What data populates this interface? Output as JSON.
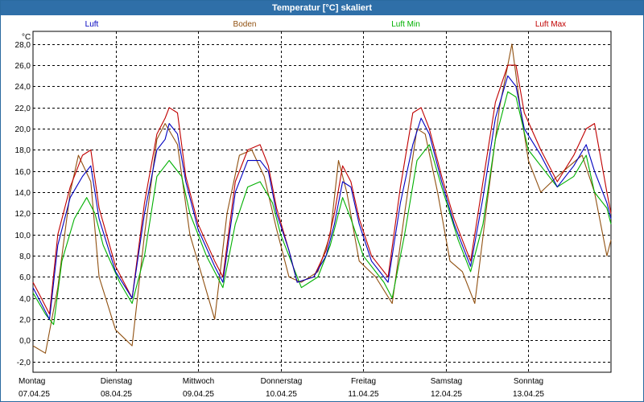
{
  "window": {
    "title": "Temperatur [°C] skaliert"
  },
  "chart_data": {
    "type": "line",
    "title": "Temperatur [°C] skaliert",
    "ylabel": "°C",
    "xlabel": "",
    "ylim": [
      -3.0,
      29.2
    ],
    "xlim": [
      0,
      7.0
    ],
    "grid": true,
    "legend_position": "top",
    "y_ticks": [
      "28,0",
      "26,0",
      "24,0",
      "22,0",
      "20,0",
      "18,0",
      "16,0",
      "14,0",
      "12,0",
      "10,0",
      "8,0",
      "6,0",
      "4,0",
      "2,0",
      "0,0",
      "-2,0"
    ],
    "y_tick_values": [
      28,
      26,
      24,
      22,
      20,
      18,
      16,
      14,
      12,
      10,
      8,
      6,
      4,
      2,
      0,
      -2
    ],
    "x_ticks": [
      {
        "x": 0,
        "day": "Montag",
        "date": "07.04.25"
      },
      {
        "x": 1,
        "day": "Dienstag",
        "date": "08.04.25"
      },
      {
        "x": 2,
        "day": "Mittwoch",
        "date": "09.04.25"
      },
      {
        "x": 3,
        "day": "Donnerstag",
        "date": "10.04.25"
      },
      {
        "x": 4,
        "day": "Freitag",
        "date": "11.04.25"
      },
      {
        "x": 5,
        "day": "Samstag",
        "date": "12.04.25"
      },
      {
        "x": 6,
        "day": "Sonntag",
        "date": "13.04.25"
      }
    ],
    "series": [
      {
        "name": "Luft",
        "color": "#0000c0",
        "points": [
          [
            0,
            5.0
          ],
          [
            0.1,
            3.5
          ],
          [
            0.2,
            2.0
          ],
          [
            0.3,
            9.0
          ],
          [
            0.45,
            13.5
          ],
          [
            0.6,
            15.5
          ],
          [
            0.7,
            16.5
          ],
          [
            0.8,
            11.5
          ],
          [
            1.0,
            6.5
          ],
          [
            1.2,
            4.0
          ],
          [
            1.35,
            12.0
          ],
          [
            1.5,
            18.0
          ],
          [
            1.6,
            19.0
          ],
          [
            1.65,
            20.5
          ],
          [
            1.75,
            19.5
          ],
          [
            1.85,
            15.0
          ],
          [
            2.0,
            10.5
          ],
          [
            2.2,
            7.0
          ],
          [
            2.3,
            5.5
          ],
          [
            2.45,
            14.0
          ],
          [
            2.6,
            17.0
          ],
          [
            2.75,
            17.0
          ],
          [
            2.85,
            16.0
          ],
          [
            2.95,
            12.0
          ],
          [
            3.1,
            8.5
          ],
          [
            3.2,
            5.5
          ],
          [
            3.4,
            6.0
          ],
          [
            3.55,
            8.0
          ],
          [
            3.65,
            11.0
          ],
          [
            3.75,
            15.0
          ],
          [
            3.85,
            14.5
          ],
          [
            3.95,
            11.0
          ],
          [
            4.1,
            7.5
          ],
          [
            4.3,
            5.5
          ],
          [
            4.45,
            13.0
          ],
          [
            4.6,
            18.5
          ],
          [
            4.7,
            21.0
          ],
          [
            4.8,
            19.5
          ],
          [
            4.95,
            15.0
          ],
          [
            5.1,
            11.0
          ],
          [
            5.3,
            7.0
          ],
          [
            5.45,
            13.5
          ],
          [
            5.6,
            21.0
          ],
          [
            5.75,
            25.0
          ],
          [
            5.85,
            24.0
          ],
          [
            5.95,
            20.0
          ],
          [
            6.15,
            17.5
          ],
          [
            6.35,
            14.5
          ],
          [
            6.55,
            16.5
          ],
          [
            6.7,
            18.5
          ],
          [
            6.8,
            16.0
          ],
          [
            6.95,
            13.0
          ],
          [
            7.0,
            11.5
          ]
        ]
      },
      {
        "name": "Boden",
        "color": "#905010",
        "points": [
          [
            0,
            -0.5
          ],
          [
            0.15,
            -1.2
          ],
          [
            0.3,
            5.0
          ],
          [
            0.45,
            14.0
          ],
          [
            0.55,
            17.5
          ],
          [
            0.7,
            15.0
          ],
          [
            0.8,
            6.0
          ],
          [
            1.0,
            1.0
          ],
          [
            1.2,
            -0.5
          ],
          [
            1.35,
            10.0
          ],
          [
            1.5,
            19.0
          ],
          [
            1.6,
            20.5
          ],
          [
            1.75,
            18.5
          ],
          [
            1.9,
            10.0
          ],
          [
            2.05,
            6.0
          ],
          [
            2.2,
            2.0
          ],
          [
            2.35,
            12.0
          ],
          [
            2.5,
            17.5
          ],
          [
            2.65,
            18.0
          ],
          [
            2.8,
            15.5
          ],
          [
            2.95,
            10.5
          ],
          [
            3.1,
            6.0
          ],
          [
            3.25,
            5.5
          ],
          [
            3.45,
            6.5
          ],
          [
            3.6,
            10.0
          ],
          [
            3.7,
            17.0
          ],
          [
            3.8,
            14.0
          ],
          [
            3.95,
            7.5
          ],
          [
            4.15,
            6.0
          ],
          [
            4.35,
            3.5
          ],
          [
            4.5,
            12.0
          ],
          [
            4.65,
            20.0
          ],
          [
            4.75,
            19.5
          ],
          [
            4.9,
            14.0
          ],
          [
            5.05,
            7.5
          ],
          [
            5.2,
            6.5
          ],
          [
            5.35,
            3.5
          ],
          [
            5.5,
            13.0
          ],
          [
            5.65,
            22.0
          ],
          [
            5.8,
            28.0
          ],
          [
            5.9,
            22.0
          ],
          [
            6.0,
            17.0
          ],
          [
            6.15,
            14.0
          ],
          [
            6.35,
            15.5
          ],
          [
            6.5,
            16.5
          ],
          [
            6.65,
            17.5
          ],
          [
            6.8,
            14.0
          ],
          [
            6.95,
            8.0
          ],
          [
            7.0,
            9.5
          ]
        ]
      },
      {
        "name": "Luft Min",
        "color": "#00b000",
        "points": [
          [
            0,
            4.5
          ],
          [
            0.15,
            2.5
          ],
          [
            0.25,
            1.5
          ],
          [
            0.35,
            7.5
          ],
          [
            0.5,
            11.5
          ],
          [
            0.65,
            13.5
          ],
          [
            0.75,
            12.0
          ],
          [
            0.85,
            9.0
          ],
          [
            1.05,
            5.5
          ],
          [
            1.2,
            3.5
          ],
          [
            1.35,
            8.0
          ],
          [
            1.5,
            15.5
          ],
          [
            1.65,
            17.0
          ],
          [
            1.8,
            15.5
          ],
          [
            1.9,
            12.0
          ],
          [
            2.1,
            8.0
          ],
          [
            2.3,
            5.0
          ],
          [
            2.45,
            11.0
          ],
          [
            2.6,
            14.5
          ],
          [
            2.75,
            15.0
          ],
          [
            2.9,
            13.0
          ],
          [
            3.0,
            10.0
          ],
          [
            3.15,
            7.0
          ],
          [
            3.25,
            5.0
          ],
          [
            3.45,
            6.0
          ],
          [
            3.6,
            9.0
          ],
          [
            3.75,
            13.5
          ],
          [
            3.85,
            11.5
          ],
          [
            4.0,
            8.0
          ],
          [
            4.25,
            5.5
          ],
          [
            4.35,
            4.0
          ],
          [
            4.5,
            10.0
          ],
          [
            4.65,
            17.0
          ],
          [
            4.8,
            18.5
          ],
          [
            4.95,
            14.5
          ],
          [
            5.15,
            9.5
          ],
          [
            5.3,
            6.5
          ],
          [
            5.45,
            11.0
          ],
          [
            5.6,
            19.0
          ],
          [
            5.75,
            23.5
          ],
          [
            5.85,
            23.0
          ],
          [
            6.0,
            18.0
          ],
          [
            6.2,
            16.0
          ],
          [
            6.35,
            14.5
          ],
          [
            6.55,
            15.5
          ],
          [
            6.7,
            17.5
          ],
          [
            6.8,
            14.0
          ],
          [
            6.95,
            12.5
          ],
          [
            7.0,
            11.0
          ]
        ]
      },
      {
        "name": "Luft Max",
        "color": "#c00000",
        "points": [
          [
            0,
            5.5
          ],
          [
            0.1,
            4.0
          ],
          [
            0.2,
            2.5
          ],
          [
            0.3,
            10.0
          ],
          [
            0.45,
            14.5
          ],
          [
            0.6,
            17.5
          ],
          [
            0.7,
            18.0
          ],
          [
            0.8,
            12.5
          ],
          [
            1.0,
            7.0
          ],
          [
            1.2,
            4.0
          ],
          [
            1.35,
            13.0
          ],
          [
            1.5,
            19.5
          ],
          [
            1.6,
            21.0
          ],
          [
            1.65,
            22.0
          ],
          [
            1.75,
            21.5
          ],
          [
            1.85,
            15.5
          ],
          [
            2.0,
            11.0
          ],
          [
            2.2,
            7.5
          ],
          [
            2.3,
            6.0
          ],
          [
            2.45,
            15.0
          ],
          [
            2.6,
            18.0
          ],
          [
            2.75,
            18.5
          ],
          [
            2.85,
            16.5
          ],
          [
            2.95,
            12.5
          ],
          [
            3.1,
            8.5
          ],
          [
            3.2,
            5.5
          ],
          [
            3.4,
            6.0
          ],
          [
            3.55,
            8.5
          ],
          [
            3.65,
            12.0
          ],
          [
            3.75,
            16.5
          ],
          [
            3.85,
            15.0
          ],
          [
            3.95,
            11.5
          ],
          [
            4.1,
            8.0
          ],
          [
            4.3,
            6.0
          ],
          [
            4.45,
            14.5
          ],
          [
            4.6,
            21.5
          ],
          [
            4.7,
            22.0
          ],
          [
            4.8,
            20.0
          ],
          [
            4.95,
            15.5
          ],
          [
            5.1,
            11.5
          ],
          [
            5.3,
            7.5
          ],
          [
            5.45,
            15.0
          ],
          [
            5.6,
            22.5
          ],
          [
            5.75,
            26.0
          ],
          [
            5.85,
            26.0
          ],
          [
            5.95,
            21.5
          ],
          [
            6.15,
            18.0
          ],
          [
            6.35,
            15.0
          ],
          [
            6.55,
            17.5
          ],
          [
            6.7,
            20.0
          ],
          [
            6.8,
            20.5
          ],
          [
            6.95,
            14.0
          ],
          [
            7.0,
            12.0
          ]
        ]
      }
    ]
  }
}
